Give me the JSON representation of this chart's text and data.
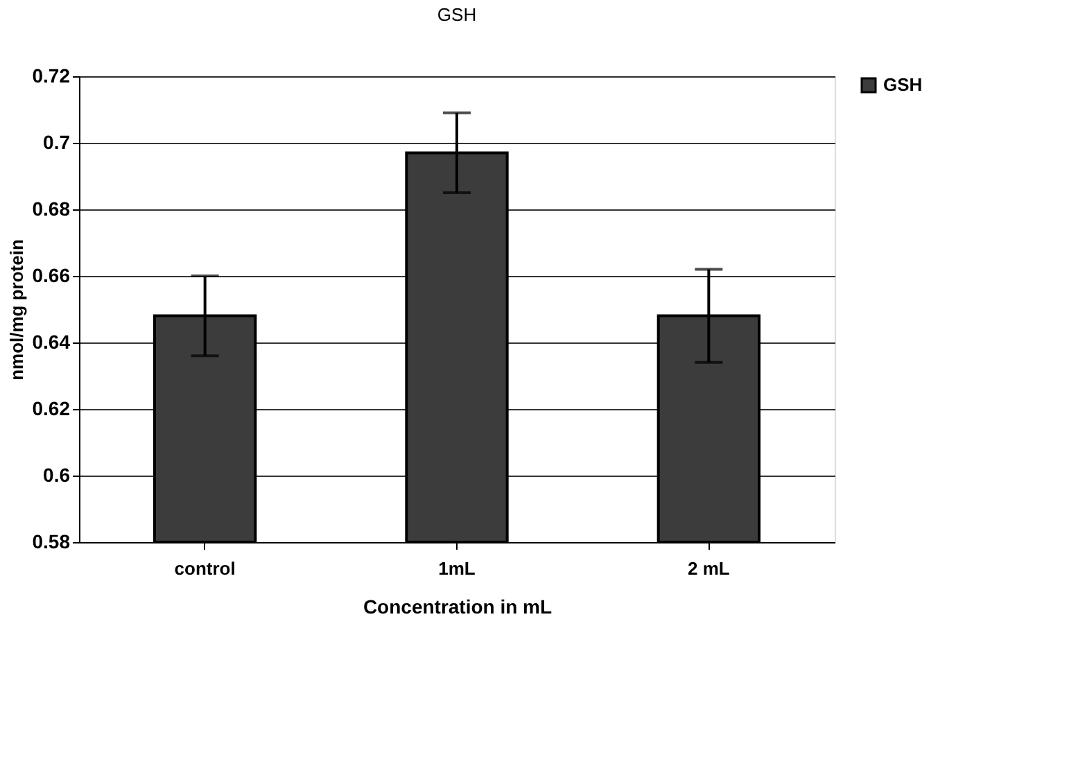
{
  "chart_data": {
    "type": "bar",
    "title": "GSH",
    "xlabel": "Concentration in mL",
    "ylabel": "nmol/mg protein",
    "categories": [
      "control",
      "1mL",
      "2 mL"
    ],
    "series": [
      {
        "name": "GSH",
        "color": "#3c3c3c",
        "values": [
          0.648,
          0.697,
          0.648
        ],
        "errors": [
          0.012,
          0.012,
          0.014
        ]
      }
    ],
    "ylim": [
      0.58,
      0.72
    ],
    "yticks": [
      0.58,
      {
        "value": 0.6,
        "label": "0.6"
      },
      0.62,
      0.64,
      0.66,
      0.68,
      {
        "value": 0.7,
        "label": "0.7"
      },
      0.72
    ],
    "grid": "y",
    "legend": "right"
  }
}
